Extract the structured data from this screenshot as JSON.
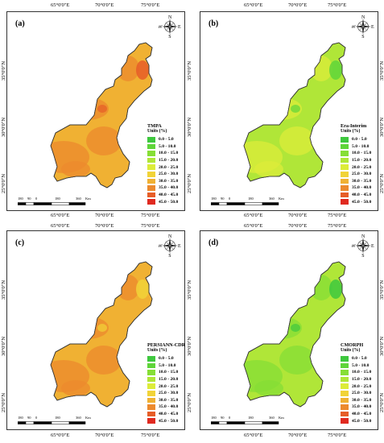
{
  "coords": {
    "lon": [
      "65°0'0\"E",
      "70°0'0\"E",
      "75°0'0\"E"
    ],
    "lat": [
      "35°0'0\"N",
      "30°0'0\"N",
      "25°0'0\"N"
    ]
  },
  "compass": {
    "n": "N",
    "s": "S",
    "e": "E",
    "w": "W"
  },
  "scalebar": {
    "ticks": [
      "180",
      "90",
      "0",
      "180",
      "360"
    ],
    "unit": "Km"
  },
  "legend": {
    "units": "Units (%)",
    "classes": [
      "0.0 - 5.0",
      "5.0 - 10.0",
      "10.0 - 15.0",
      "15.0 - 20.0",
      "20.0 - 25.0",
      "25.0 - 30.0",
      "30.0 - 35.0",
      "35.0 - 40.0",
      "40.0 - 45.0",
      "45.0 - 50.0"
    ],
    "colors": [
      "#3ec83e",
      "#5fd53a",
      "#86de36",
      "#b0e638",
      "#dcec3a",
      "#f1d338",
      "#f0b133",
      "#ec8a2e",
      "#e65d28",
      "#e02a20"
    ]
  },
  "panels": [
    {
      "label": "(a)",
      "dataset": "TMPA",
      "fill": "#f0b133",
      "patch": "#ec8a2e",
      "hot": "#e65d28"
    },
    {
      "label": "(b)",
      "dataset": "Era-Interim",
      "fill": "#b0e638",
      "patch": "#dcec3a",
      "hot": "#5fd53a"
    },
    {
      "label": "(c)",
      "dataset": "PERSIANN-CDR",
      "fill": "#f0b133",
      "patch": "#ec8a2e",
      "hot": "#f1d338"
    },
    {
      "label": "(d)",
      "dataset": "CMORPH",
      "fill": "#b0e638",
      "patch": "#86de36",
      "hot": "#3ec83e"
    }
  ]
}
